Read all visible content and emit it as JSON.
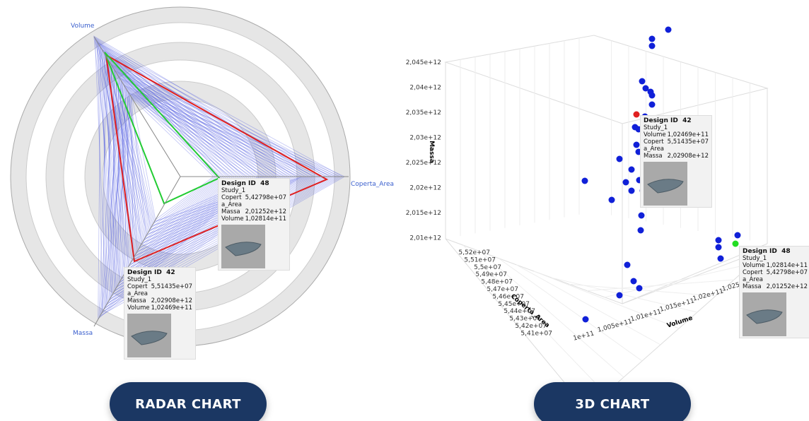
{
  "radar": {
    "axes": [
      "Volume",
      "Coperta_Area",
      "Massa"
    ],
    "tooltips": [
      {
        "label": "Design ID",
        "id": "48",
        "study": "Study_1",
        "rows": [
          [
            "Coperta_Area",
            "5,42798e+07"
          ],
          [
            "Massa",
            "2,01252e+12"
          ],
          [
            "Volume",
            "1,02814e+11"
          ]
        ]
      },
      {
        "label": "Design ID",
        "id": "42",
        "study": "Study_1",
        "rows": [
          [
            "Coperta_Area",
            "5,51435e+07"
          ],
          [
            "Massa",
            "2,02908e+12"
          ],
          [
            "Volume",
            "1,02469e+11"
          ]
        ]
      }
    ]
  },
  "chart3d": {
    "axis_titles": {
      "massa": "Massa",
      "coperta": "Coperta_Area",
      "volume": "Volume"
    },
    "massa_ticks": [
      "2,045e+12",
      "2,04e+12",
      "2,035e+12",
      "2,03e+12",
      "2,025e+12",
      "2,02e+12",
      "2,015e+12",
      "2,01e+12"
    ],
    "coperta_ticks": [
      "5,52e+07",
      "5,51e+07",
      "5,5e+07",
      "5,49e+07",
      "5,48e+07",
      "5,47e+07",
      "5,46e+07",
      "5,45e+07",
      "5,44e+07",
      "5,43e+07",
      "5,42e+07",
      "5,41e+07"
    ],
    "volume_ticks": [
      "1e+11",
      "1,005e+11",
      "1,01e+11",
      "1,015e+11",
      "1,02e+11",
      "1,025e+11"
    ],
    "tooltips": [
      {
        "label": "Design ID",
        "id": "42",
        "study": "Study_1",
        "rows": [
          [
            "Volume",
            "1,02469e+11"
          ],
          [
            "Coperta_Area",
            "5,51435e+07"
          ],
          [
            "Massa",
            "2,02908e+12"
          ]
        ]
      },
      {
        "label": "Design ID",
        "id": "48",
        "study": "Study_1",
        "rows": [
          [
            "Volume",
            "1,02814e+11"
          ],
          [
            "Coperta_Area",
            "5,42798e+07"
          ],
          [
            "Massa",
            "2,01252e+12"
          ]
        ]
      }
    ]
  },
  "buttons": [
    "RADAR CHART",
    "3D CHART"
  ]
}
